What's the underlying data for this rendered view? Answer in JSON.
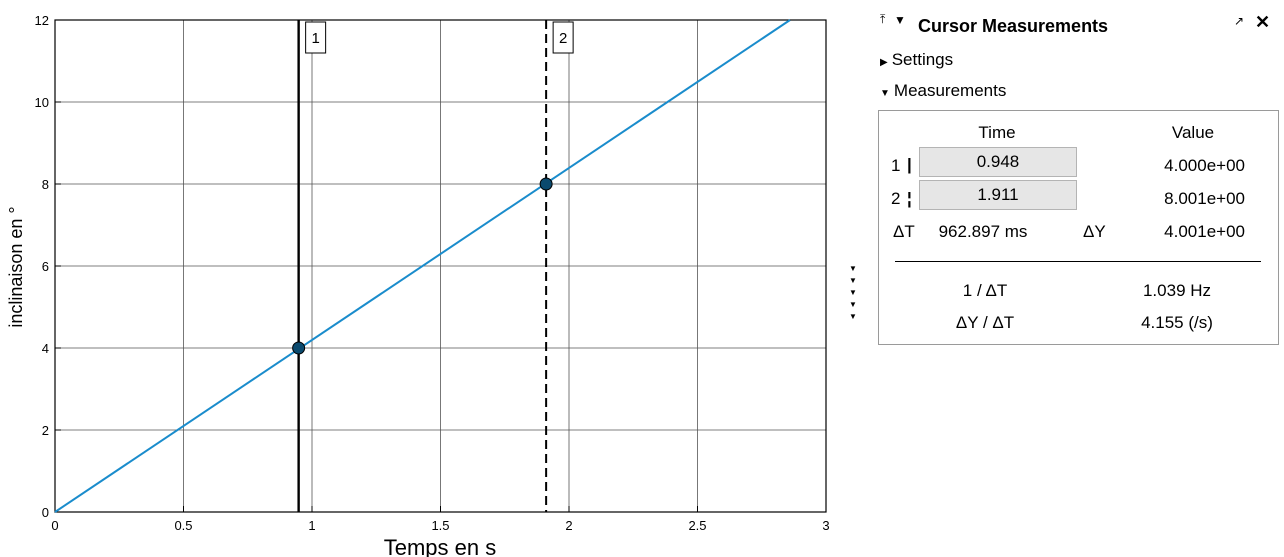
{
  "plot": {
    "xlabel": "Temps en s",
    "ylabel": "inclinaison en °",
    "cursor_labels": [
      "1",
      "2"
    ]
  },
  "chart_data": {
    "type": "line",
    "xlabel": "Temps en s",
    "ylabel": "inclinaison en °",
    "xlim": [
      0,
      3
    ],
    "ylim": [
      0,
      12
    ],
    "xticks": [
      0,
      0.5,
      1,
      1.5,
      2,
      2.5,
      3
    ],
    "xtick_labels": [
      "0",
      "0.5",
      "1",
      "1.5",
      "2",
      "2.5",
      "3"
    ],
    "yticks": [
      0,
      2,
      4,
      6,
      8,
      10,
      12
    ],
    "ytick_labels": [
      "0",
      "2",
      "4",
      "6",
      "8",
      "10",
      "12"
    ],
    "grid": true,
    "line_color": "#1a8ccc",
    "series": [
      {
        "x": [
          0,
          2.86
        ],
        "y": [
          0,
          12
        ]
      }
    ],
    "cursors": [
      {
        "label": "1",
        "x": 0.948,
        "y": 4.0,
        "style": "solid"
      },
      {
        "label": "2",
        "x": 1.911,
        "y": 8.0,
        "style": "dashed"
      }
    ],
    "marker_color": "#0b4a6e"
  },
  "panel": {
    "title": "Cursor Measurements",
    "pin_icon": "⤒",
    "collapse_icon": "▼",
    "undock_icon": "↗",
    "close_icon": "✕",
    "settings_label": "Settings",
    "measurements_label": "Measurements",
    "col_time": "Time",
    "col_value": "Value",
    "rows": [
      {
        "id": "1",
        "glyph": "|",
        "time": "0.948",
        "value": "4.000e+00"
      },
      {
        "id": "2",
        "glyph": "¦",
        "time": "1.911",
        "value": "8.001e+00"
      }
    ],
    "delta_t_label": "ΔT",
    "delta_t_value": "962.897 ms",
    "delta_y_label": "ΔY",
    "delta_y_value": "4.001e+00",
    "inv_dt_label": "1 / ΔT",
    "inv_dt_value": "1.039 Hz",
    "slope_label": "ΔY / ΔT",
    "slope_value": "4.155 (/s)"
  }
}
